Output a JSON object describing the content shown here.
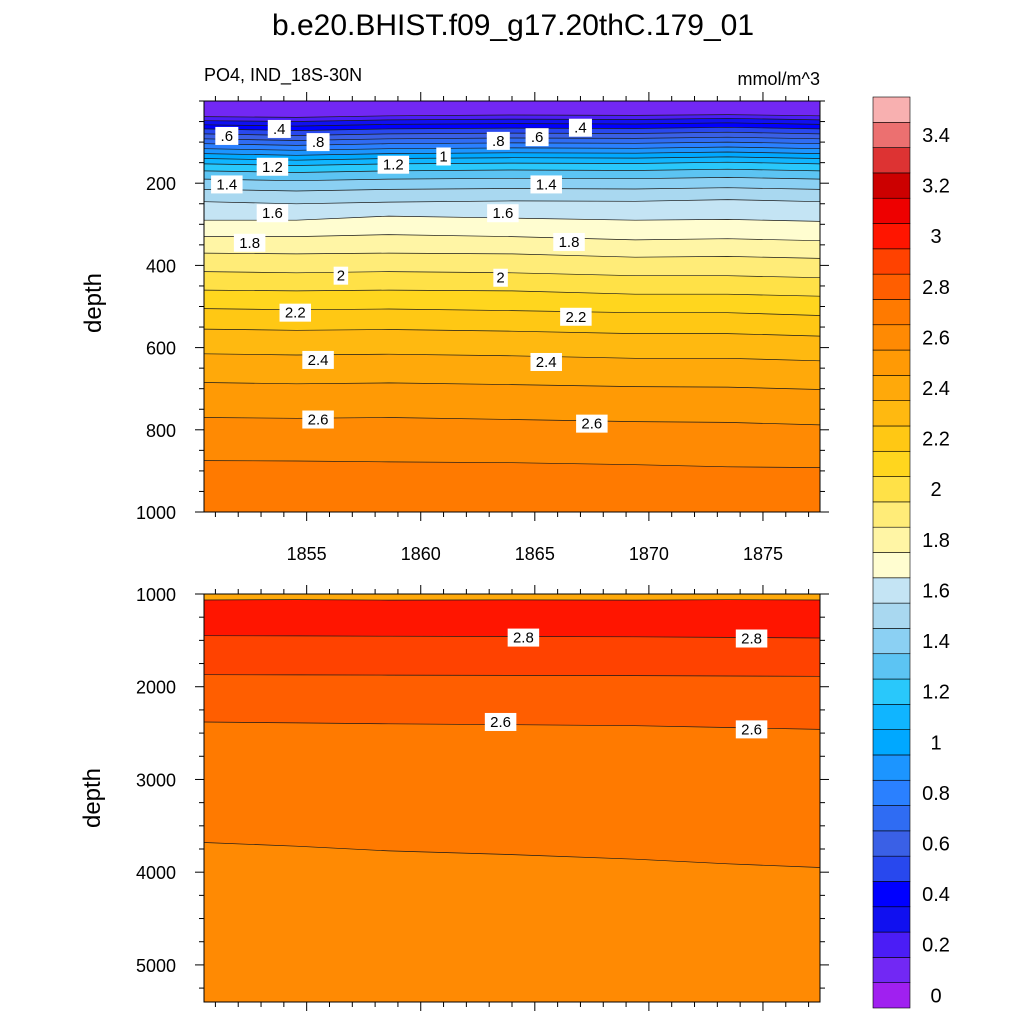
{
  "chart_data": {
    "type": "contour",
    "title": "b.e20.BHIST.f09_g17.20thC.179_01",
    "left_label": "PO4, IND_18S-30N",
    "right_label": "mmol/m^3",
    "colorbar": {
      "levels": [
        0,
        0.1,
        0.2,
        0.3,
        0.4,
        0.5,
        0.6,
        0.7,
        0.8,
        0.9,
        1.0,
        1.1,
        1.2,
        1.3,
        1.4,
        1.5,
        1.6,
        1.7,
        1.8,
        1.9,
        2.0,
        2.1,
        2.2,
        2.3,
        2.4,
        2.5,
        2.6,
        2.7,
        2.8,
        2.9,
        3.0,
        3.1,
        3.2,
        3.3,
        3.4,
        3.5
      ],
      "labels": [
        "0",
        "0.2",
        "0.4",
        "0.6",
        "0.8",
        "1",
        "1.2",
        "1.4",
        "1.6",
        "1.8",
        "2",
        "2.2",
        "2.4",
        "2.6",
        "2.8",
        "3",
        "3.2",
        "3.4"
      ],
      "colors": [
        "#a020f0",
        "#7228f4",
        "#4b1df6",
        "#1010f0",
        "#0000ff",
        "#2848ee",
        "#3a60e6",
        "#2f6cf3",
        "#2a80ff",
        "#1c95ff",
        "#00a8ff",
        "#10b5ff",
        "#29c8fb",
        "#5cc4f3",
        "#8bd0f3",
        "#a9d8f0",
        "#c4e4f4",
        "#fffdd0",
        "#fff5a5",
        "#ffec78",
        "#ffe147",
        "#ffd61e",
        "#ffc814",
        "#ffb910",
        "#ffa90a",
        "#ff9a05",
        "#ff8a03",
        "#ff7a00",
        "#ff5e00",
        "#ff4200",
        "#ff1500",
        "#ee0000",
        "#cc0000",
        "#dd3333",
        "#ec7070",
        "#f8b0b0"
      ]
    },
    "panels": [
      {
        "name": "upper",
        "xlim": [
          1850.5,
          1877.5
        ],
        "xticks": [
          1855,
          1860,
          1865,
          1870,
          1875
        ],
        "ylabel": "depth",
        "ylim": [
          0,
          1000
        ],
        "yticks": [
          200,
          400,
          600,
          800,
          1000
        ],
        "contour_labels": [
          {
            "text": ".6",
            "x": 1851.5,
            "y": 85
          },
          {
            "text": ".4",
            "x": 1853.8,
            "y": 68
          },
          {
            "text": ".8",
            "x": 1855.5,
            "y": 100
          },
          {
            "text": "1.2",
            "x": 1853.5,
            "y": 160
          },
          {
            "text": "1.2",
            "x": 1858.8,
            "y": 155
          },
          {
            "text": "1",
            "x": 1861,
            "y": 135
          },
          {
            "text": ".8",
            "x": 1863.4,
            "y": 97
          },
          {
            "text": ".6",
            "x": 1865.1,
            "y": 88
          },
          {
            "text": ".4",
            "x": 1867,
            "y": 65
          },
          {
            "text": "1.4",
            "x": 1851.5,
            "y": 203
          },
          {
            "text": "1.4",
            "x": 1865.5,
            "y": 203
          },
          {
            "text": "1.6",
            "x": 1853.5,
            "y": 273
          },
          {
            "text": "1.6",
            "x": 1863.6,
            "y": 273
          },
          {
            "text": "1.8",
            "x": 1852.5,
            "y": 345
          },
          {
            "text": "1.8",
            "x": 1866.5,
            "y": 343
          },
          {
            "text": "2",
            "x": 1856.5,
            "y": 425
          },
          {
            "text": "2",
            "x": 1863.5,
            "y": 430
          },
          {
            "text": "2.2",
            "x": 1854.5,
            "y": 515
          },
          {
            "text": "2.2",
            "x": 1866.8,
            "y": 525
          },
          {
            "text": "2.4",
            "x": 1855.5,
            "y": 630
          },
          {
            "text": "2.4",
            "x": 1865.5,
            "y": 635
          },
          {
            "text": "2.6",
            "x": 1855.5,
            "y": 775
          },
          {
            "text": "2.6",
            "x": 1867.5,
            "y": 785
          }
        ]
      },
      {
        "name": "lower",
        "xlim": [
          1850.5,
          1877.5
        ],
        "ylabel": "depth",
        "ylim": [
          1000,
          5400
        ],
        "yticks": [
          1000,
          2000,
          3000,
          4000,
          5000
        ],
        "contour_labels": [
          {
            "text": "2.8",
            "x": 1864.5,
            "y": 1470
          },
          {
            "text": "2.8",
            "x": 1874.5,
            "y": 1480
          },
          {
            "text": "2.6",
            "x": 1863.5,
            "y": 2380
          },
          {
            "text": "2.6",
            "x": 1874.5,
            "y": 2460
          }
        ]
      }
    ]
  }
}
